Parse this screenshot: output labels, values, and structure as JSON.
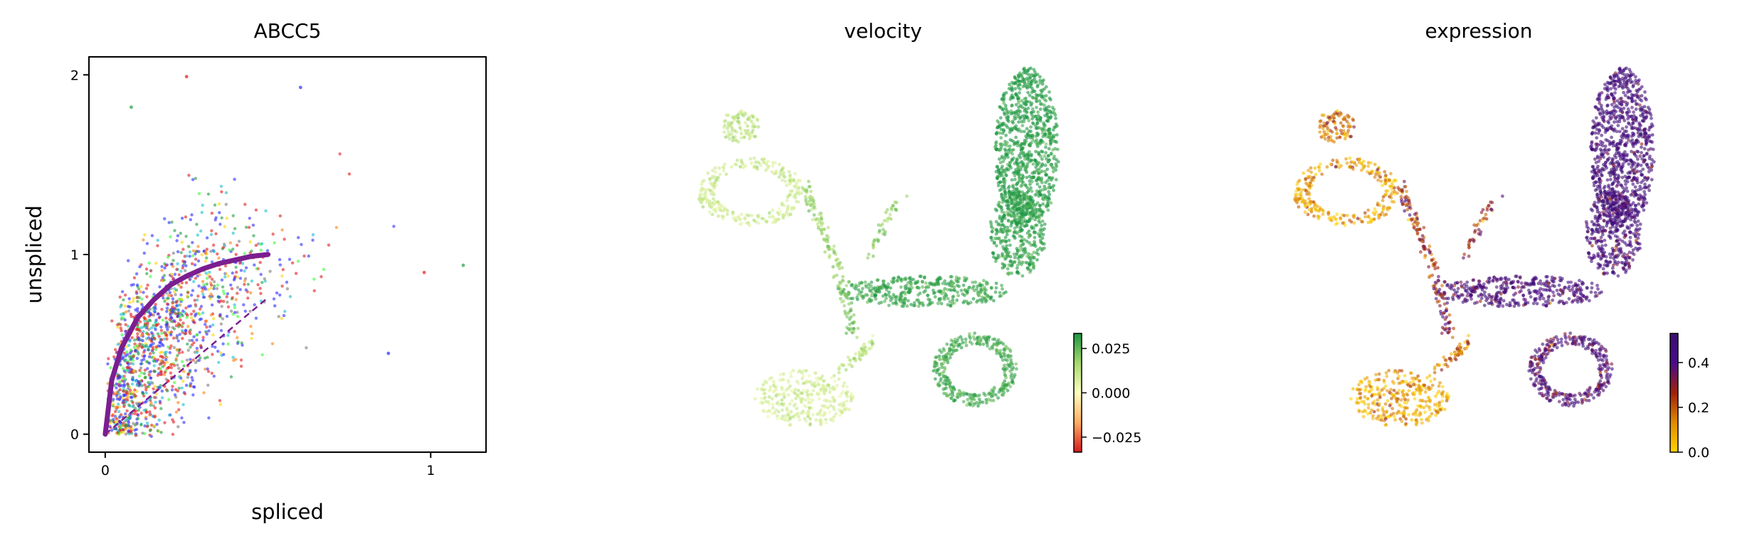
{
  "chart_data": [
    {
      "type": "scatter",
      "title": "ABCC5",
      "xlabel": "spliced",
      "ylabel": "unspliced",
      "xlim": [
        -0.05,
        1.17
      ],
      "ylim": [
        -0.1,
        2.1
      ],
      "xticks": [
        0,
        1
      ],
      "xtick_labels": [
        "0",
        "1"
      ],
      "yticks": [
        0,
        1,
        2
      ],
      "ytick_labels": [
        "0",
        "1",
        "2"
      ],
      "grid": false,
      "legend": "none",
      "point_colors": [
        "#e31a1c",
        "#2b2bff",
        "#1f9e3a",
        "#17becf",
        "#ffd400",
        "#ff7f0e",
        "#7b7b7b",
        "#33ff33"
      ],
      "fit_curve": {
        "color": "#7b1e8f",
        "style": "solid",
        "x": [
          0,
          0.02,
          0.05,
          0.1,
          0.15,
          0.2,
          0.25,
          0.3,
          0.35,
          0.4,
          0.45,
          0.5
        ],
        "y": [
          0,
          0.3,
          0.48,
          0.65,
          0.75,
          0.83,
          0.88,
          0.92,
          0.95,
          0.97,
          0.99,
          1.0
        ]
      },
      "steady_state_line": {
        "color": "#7b1e8f",
        "style": "dashed",
        "slope": 1.6,
        "x": [
          0,
          0.5
        ]
      },
      "notable_points": [
        {
          "x": 0.25,
          "y": 1.99
        },
        {
          "x": 0.6,
          "y": 1.93
        },
        {
          "x": 1.1,
          "y": 0.94
        },
        {
          "x": 0.98,
          "y": 0.9
        },
        {
          "x": 0.87,
          "y": 0.45
        },
        {
          "x": 0.08,
          "y": 1.82
        }
      ]
    },
    {
      "type": "scatter",
      "title": "velocity",
      "colorbar": {
        "ticks": [
          0.025,
          0.0,
          -0.025
        ],
        "tick_labels": [
          "0.025",
          "0.000",
          "−0.025"
        ],
        "colors": [
          "#d7191c",
          "#fdae61",
          "#ffffbf",
          "#a6d96a",
          "#1a9641"
        ]
      }
    },
    {
      "type": "scatter",
      "title": "expression",
      "colorbar": {
        "ticks": [
          0.4,
          0.2,
          0.0
        ],
        "tick_labels": [
          "0.4",
          "0.2",
          "0.0"
        ],
        "colors": [
          "#ffd400",
          "#e08a00",
          "#a0200a",
          "#4a0a8a",
          "#3b0f70"
        ]
      }
    }
  ]
}
